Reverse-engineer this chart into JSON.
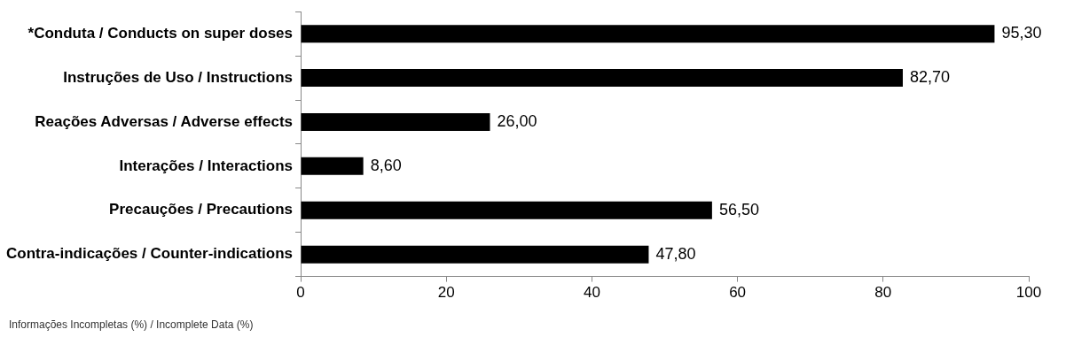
{
  "chart_data": {
    "type": "bar",
    "orientation": "horizontal",
    "xlabel": "Informações Incompletas (%) / Incomplete Data (%)",
    "categories": [
      "*Conduta / Conducts on super doses",
      "Instruções de Uso / Instructions",
      "Reações Adversas / Adverse effects",
      "Interações / Interactions",
      "Precauções / Precautions",
      "Contra-indicações / Counter-indications"
    ],
    "values": [
      95.3,
      82.7,
      26.0,
      8.6,
      56.5,
      47.8
    ],
    "value_labels": [
      "95,30",
      "82,70",
      "26,00",
      "8,60",
      "56,50",
      "47,80"
    ],
    "color": "#000000",
    "xlim": [
      0,
      100
    ],
    "xticks": [
      0,
      20,
      40,
      60,
      80,
      100
    ],
    "grid": false,
    "legend": false
  }
}
